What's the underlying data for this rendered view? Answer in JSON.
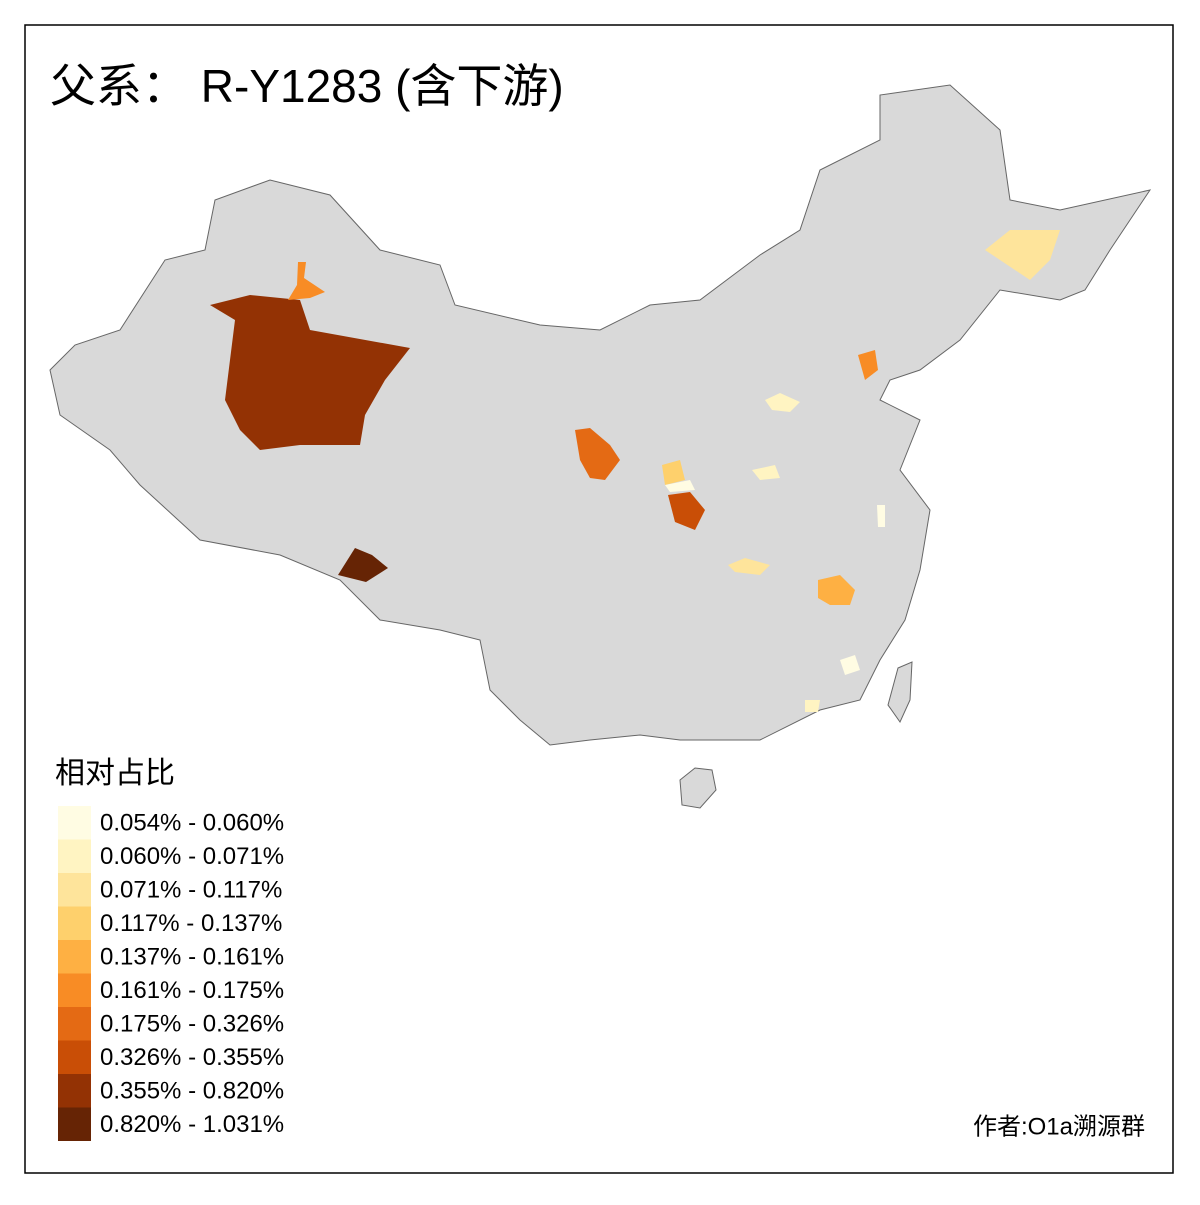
{
  "title": "父系： R-Y1283 (含下游)",
  "legend": {
    "title": "相对占比",
    "items": [
      {
        "label": "0.054% - 0.060%",
        "color": "#fffce3"
      },
      {
        "label": "0.060% - 0.071%",
        "color": "#fff4c2"
      },
      {
        "label": "0.071% - 0.117%",
        "color": "#fee49b"
      },
      {
        "label": "0.117% - 0.137%",
        "color": "#fed06c"
      },
      {
        "label": "0.137% - 0.161%",
        "color": "#feb043"
      },
      {
        "label": "0.161% - 0.175%",
        "color": "#f88c25"
      },
      {
        "label": "0.175% - 0.326%",
        "color": "#e46a14"
      },
      {
        "label": "0.326% - 0.355%",
        "color": "#c94e06"
      },
      {
        "label": "0.355% - 0.820%",
        "color": "#933204"
      },
      {
        "label": "0.820% - 1.031%",
        "color": "#662405"
      }
    ]
  },
  "author": "作者:O1a溯源群"
}
